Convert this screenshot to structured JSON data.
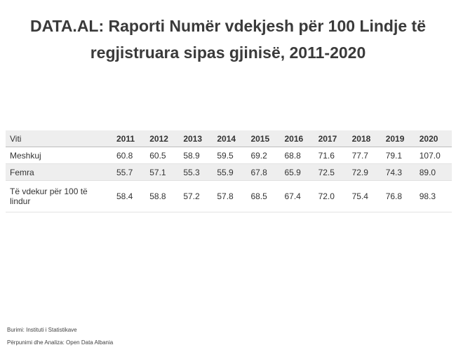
{
  "title": "DATA.AL: Raporti Numër vdekjesh për 100 Lindje të regjistruara sipas gjinisë, 2011-2020",
  "table": {
    "corner": "Viti",
    "years": [
      "2011",
      "2012",
      "2013",
      "2014",
      "2015",
      "2016",
      "2017",
      "2018",
      "2019",
      "2020"
    ],
    "rows": [
      {
        "label": "Meshkuj",
        "values": [
          "60.8",
          "60.5",
          "58.9",
          "59.5",
          "69.2",
          "68.8",
          "71.6",
          "77.7",
          "79.1",
          "107.0"
        ]
      },
      {
        "label": "Femra",
        "values": [
          "55.7",
          "57.1",
          "55.3",
          "55.9",
          "67.8",
          "65.9",
          "72.5",
          "72.9",
          "74.3",
          "89.0"
        ]
      },
      {
        "label": "Të vdekur për 100 të lindur",
        "values": [
          "58.4",
          "58.8",
          "57.2",
          "57.8",
          "68.5",
          "67.4",
          "72.0",
          "75.4",
          "76.8",
          "98.3"
        ]
      }
    ]
  },
  "footer": {
    "source": "Burimi: Instituti i Statistikave",
    "processing": "Përpunimi  dhe Analiza: Open Data Albania"
  }
}
